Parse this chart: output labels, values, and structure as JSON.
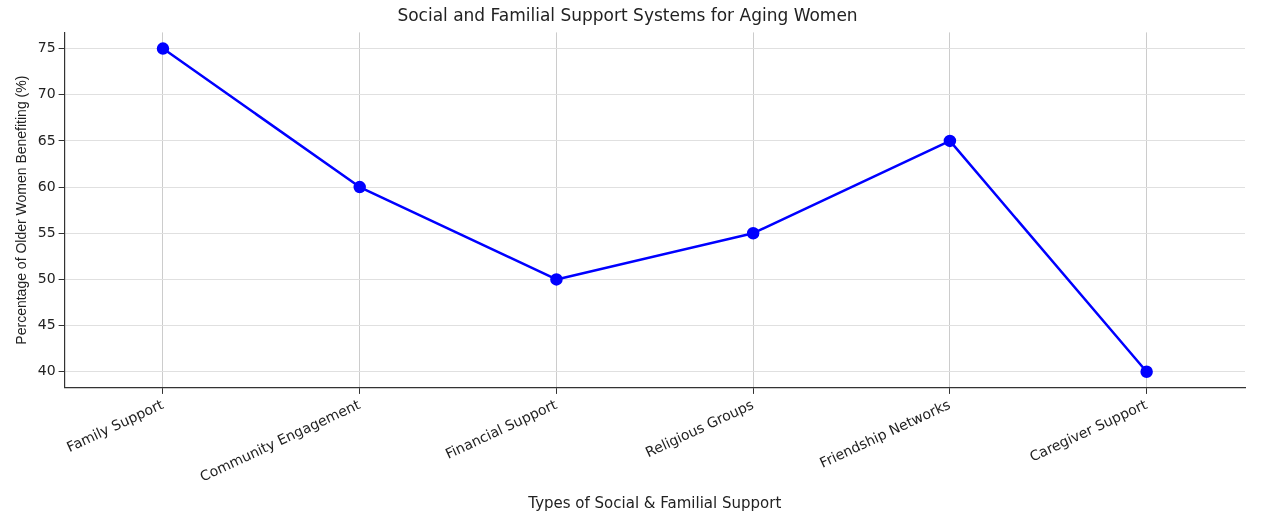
{
  "chart_data": {
    "type": "line",
    "title": "Social and Familial Support Systems for Aging Women",
    "xlabel": "Types of Social & Familial Support",
    "ylabel": "Percentage of Older Women Benefiting (%)",
    "categories": [
      "Family Support",
      "Community Engagement",
      "Financial Support",
      "Religious Groups",
      "Friendship Networks",
      "Caregiver Support"
    ],
    "series": [
      {
        "color": "#0000ff",
        "values": [
          75,
          60,
          50,
          55,
          65,
          40
        ]
      }
    ],
    "ylim": [
      38.25,
      76.75
    ],
    "yticks": [
      40,
      45,
      50,
      55,
      60,
      65,
      70,
      75
    ],
    "grid": true,
    "marker": "circle",
    "line_style": "solid",
    "legend": false
  }
}
